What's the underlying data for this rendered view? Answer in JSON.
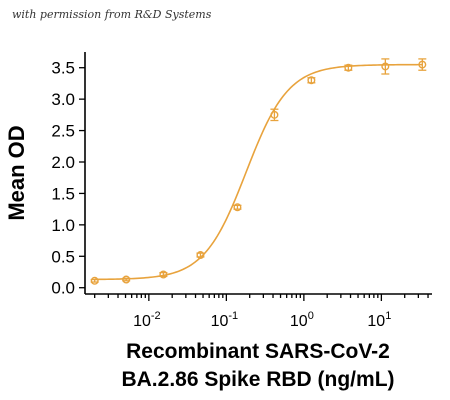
{
  "credit_text": "with permission from R&D Systems",
  "colors": {
    "series": "#E8A33D",
    "axis": "#000000"
  },
  "chart_data": {
    "type": "scatter",
    "xlabel_lines": [
      "Recombinant SARS-CoV-2",
      "BA.2.86 Spike RBD (ng/mL)"
    ],
    "ylabel": "Mean OD",
    "x_scale": "log",
    "xlim": [
      0.0015,
      45
    ],
    "ylim": [
      -0.1,
      3.75
    ],
    "y_ticks": [
      0.0,
      0.5,
      1.0,
      1.5,
      2.0,
      2.5,
      3.0,
      3.5
    ],
    "y_tick_labels": [
      "0.0",
      "0.5",
      "1.0",
      "1.5",
      "2.0",
      "2.5",
      "3.0",
      "3.5"
    ],
    "x_ticks": [
      {
        "value": 0.01,
        "base": "10",
        "exp": "-2"
      },
      {
        "value": 0.1,
        "base": "10",
        "exp": "-1"
      },
      {
        "value": 1,
        "base": "10",
        "exp": "0"
      },
      {
        "value": 10,
        "base": "10",
        "exp": "1"
      }
    ],
    "grid": false,
    "legend": "none",
    "fit": {
      "model": "4PL",
      "bottom": 0.13,
      "top": 3.55,
      "ec50": 0.18,
      "hill": 1.6
    },
    "series": [
      {
        "x": [
          0.002,
          0.0051,
          0.0154,
          0.0463,
          0.139,
          0.417,
          1.25,
          3.75,
          11.25,
          33.75
        ],
        "y": [
          0.11,
          0.13,
          0.21,
          0.52,
          1.28,
          2.75,
          3.3,
          3.5,
          3.52,
          3.55
        ],
        "err": [
          0.02,
          0.02,
          0.03,
          0.03,
          0.03,
          0.09,
          0.04,
          0.04,
          0.12,
          0.09
        ]
      }
    ]
  }
}
